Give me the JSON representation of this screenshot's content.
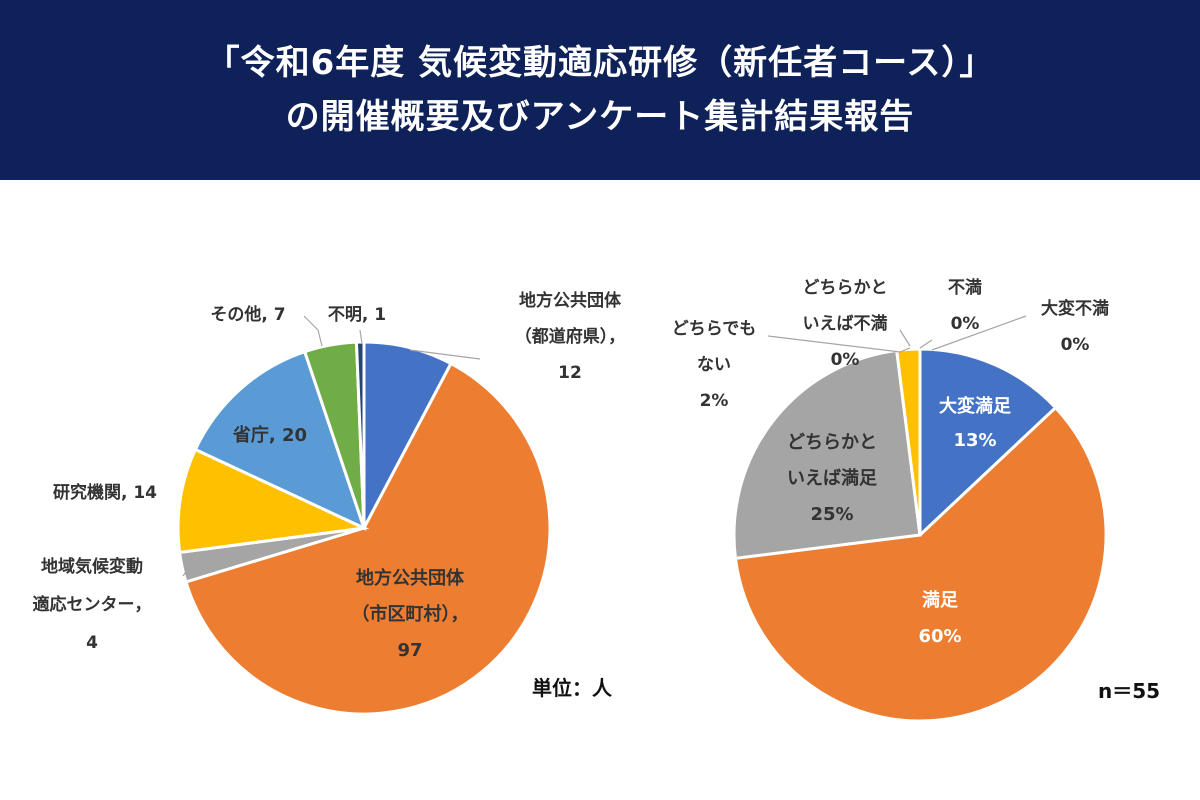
{
  "header": {
    "title_line1": "「令和6年度 気候変動適応研修（新任者コース）」",
    "title_line2": "の開催概要及びアンケート集計結果報告"
  },
  "chart_data": [
    {
      "type": "pie",
      "title": "",
      "unit_note": "単位：人",
      "start_angle_deg": 0,
      "direction": "clockwise",
      "slices": [
        {
          "name": "地方公共団体（都道府県）",
          "value": 12,
          "color": "#4472c4",
          "label_lines": [
            "地方公共団体",
            "（都道府県），",
            "12"
          ]
        },
        {
          "name": "地方公共団体（市区町村）",
          "value": 97,
          "color": "#ed7d31",
          "label_lines": [
            "地方公共団体",
            "（市区町村），",
            "97"
          ]
        },
        {
          "name": "地域気候変動適応センター",
          "value": 4,
          "color": "#a5a5a5",
          "label_lines": [
            "地域気候変動",
            "適応センター，",
            "4"
          ]
        },
        {
          "name": "研究機関",
          "value": 14,
          "color": "#ffc000",
          "label_lines": [
            "研究機関, 14"
          ]
        },
        {
          "name": "省庁",
          "value": 20,
          "color": "#5b9bd5",
          "label_lines": [
            "省庁, 20"
          ]
        },
        {
          "name": "その他",
          "value": 7,
          "color": "#70ad47",
          "label_lines": [
            "その他, 7"
          ]
        },
        {
          "name": "不明",
          "value": 1,
          "color": "#264478",
          "label_lines": [
            "不明, 1"
          ]
        }
      ]
    },
    {
      "type": "pie",
      "title": "",
      "n_note": "n＝55",
      "start_angle_deg": 0,
      "direction": "clockwise",
      "slices": [
        {
          "name": "大変満足",
          "value": 13,
          "color": "#4472c4",
          "label_lines": [
            "大変満足",
            "13%"
          ]
        },
        {
          "name": "満足",
          "value": 60,
          "color": "#ed7d31",
          "label_lines": [
            "満足",
            "60%"
          ]
        },
        {
          "name": "どちらかといえば満足",
          "value": 25,
          "color": "#a5a5a5",
          "label_lines": [
            "どちらかと",
            "いえば満足",
            "25%"
          ]
        },
        {
          "name": "どちらでもない",
          "value": 2,
          "color": "#ffc000",
          "label_lines": [
            "どちらでも",
            "ない",
            "2%"
          ]
        },
        {
          "name": "どちらかといえば不満",
          "value": 0,
          "color": "#5b9bd5",
          "label_lines": [
            "どちらかと",
            "いえば不満",
            "0%"
          ]
        },
        {
          "name": "不満",
          "value": 0,
          "color": "#70ad47",
          "label_lines": [
            "不満",
            "0%"
          ]
        },
        {
          "name": "大変不満",
          "value": 0,
          "color": "#264478",
          "label_lines": [
            "大変不満",
            "0%"
          ]
        }
      ]
    }
  ]
}
